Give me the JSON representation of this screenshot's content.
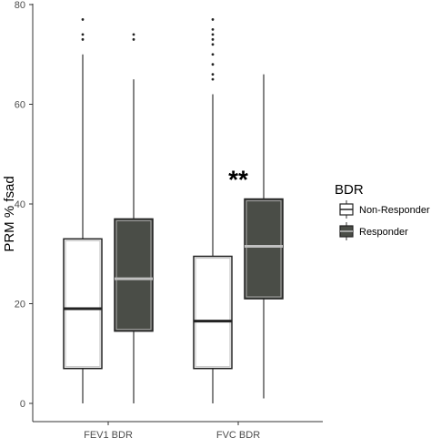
{
  "chart_data": {
    "type": "boxplot",
    "title": "",
    "xlabel": "",
    "ylabel": "PRM % fsad",
    "ylim": [
      0,
      80
    ],
    "yticks": [
      0,
      20,
      40,
      60,
      80
    ],
    "categories": [
      "FEV1 BDR",
      "FVC BDR"
    ],
    "legend": {
      "title": "BDR",
      "position": "right"
    },
    "series": [
      {
        "name": "Non-Responder",
        "color": "#ffffff",
        "boxes": [
          {
            "category": "FEV1 BDR",
            "min": 0,
            "q1": 7,
            "median": 19,
            "q3": 33,
            "max": 70,
            "outliers": [
              73,
              74,
              77
            ]
          },
          {
            "category": "FVC BDR",
            "min": 0,
            "q1": 7,
            "median": 16.5,
            "q3": 29.5,
            "max": 62,
            "outliers": [
              65,
              66,
              68,
              70,
              72,
              73,
              74,
              75,
              77
            ]
          }
        ]
      },
      {
        "name": "Responder",
        "color": "#4a4d47",
        "boxes": [
          {
            "category": "FEV1 BDR",
            "min": 0,
            "q1": 14.5,
            "median": 25,
            "q3": 37,
            "max": 65,
            "outliers": [
              73,
              74
            ]
          },
          {
            "category": "FVC BDR",
            "min": 1,
            "q1": 21,
            "median": 31.5,
            "q3": 41,
            "max": 66,
            "outliers": []
          }
        ]
      }
    ],
    "annotations": [
      {
        "text": "**",
        "category": "FVC BDR",
        "y": 45
      }
    ],
    "grid": false
  }
}
